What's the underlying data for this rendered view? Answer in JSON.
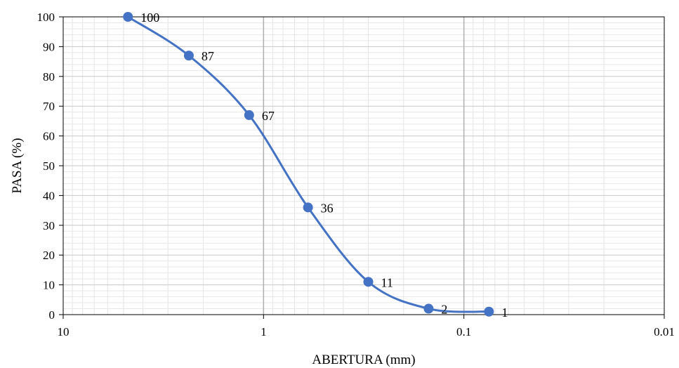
{
  "chart_data": {
    "type": "line",
    "title": "",
    "xlabel": "ABERTURA (mm)",
    "ylabel": "PASA (%)",
    "x_scale": "log",
    "x_reversed": true,
    "xlim": [
      10,
      0.01
    ],
    "ylim": [
      0,
      100
    ],
    "x_ticks": [
      10,
      1,
      0.1,
      0.01
    ],
    "x_tick_labels": [
      "10",
      "1",
      "0.1",
      "0.01"
    ],
    "y_ticks": [
      0,
      10,
      20,
      30,
      40,
      50,
      60,
      70,
      80,
      90,
      100
    ],
    "y_tick_labels": [
      "0",
      "10",
      "20",
      "30",
      "40",
      "50",
      "60",
      "70",
      "80",
      "90",
      "100"
    ],
    "grid": "major and minor",
    "legend": "none",
    "smooth": true,
    "series": [
      {
        "x": [
          4.75,
          2.36,
          1.18,
          0.6,
          0.3,
          0.15,
          0.075
        ],
        "y": [
          100,
          87,
          67,
          36,
          11,
          2,
          1
        ],
        "data_labels": [
          "100",
          "87",
          "67",
          "36",
          "11",
          "2",
          "1"
        ],
        "color": "#4472c4"
      }
    ]
  }
}
